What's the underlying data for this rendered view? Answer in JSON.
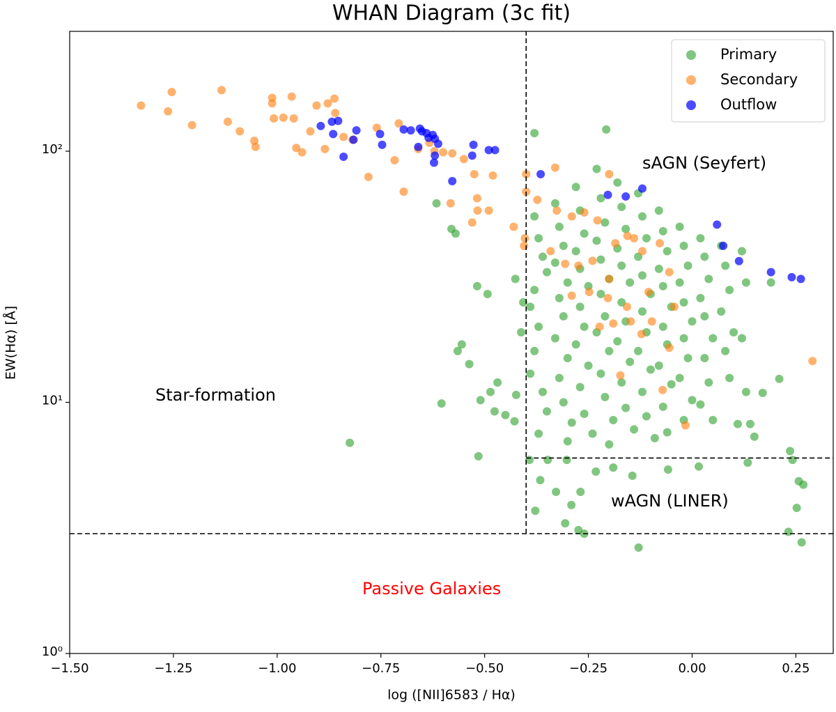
{
  "chart_data": {
    "type": "scatter",
    "title": "WHAN Diagram (3c fit)",
    "x_label": "log ([NII]6583 / Hα)",
    "y_label": "EW(Hα) [Å]",
    "xlim": [
      -1.5,
      0.34
    ],
    "ylim": [
      1,
      300
    ],
    "yscale": "log",
    "xticks": [
      {
        "value": -1.5,
        "label": "−1.50"
      },
      {
        "value": -1.25,
        "label": "−1.25"
      },
      {
        "value": -1,
        "label": "−1.00"
      },
      {
        "value": -0.75,
        "label": "−0.75"
      },
      {
        "value": -0.5,
        "label": "−0.50"
      },
      {
        "value": -0.25,
        "label": "−0.25"
      },
      {
        "value": 0,
        "label": "0.00"
      },
      0.25
    ],
    "yticks": [
      {
        "value": 1,
        "label": "10⁰"
      },
      {
        "value": 10,
        "label": "10¹"
      },
      {
        "value": 100,
        "label": "10²"
      }
    ],
    "legend": "upper right",
    "dividers": [
      {
        "x": [
          -0.4,
          -0.4
        ],
        "y": [
          3,
          300
        ]
      },
      {
        "x": [
          -1.5,
          0.34
        ],
        "y": [
          3,
          3
        ]
      },
      {
        "x": [
          -0.4,
          0.34
        ],
        "y": [
          6,
          6
        ]
      }
    ],
    "annotations": [
      {
        "text": "Star-formation",
        "color": "#000000"
      },
      {
        "text": "sAGN (Seyfert)",
        "color": "#000000"
      },
      {
        "text": "wAGN (LINER)",
        "color": "#000000"
      },
      {
        "text": "Passive Galaxies",
        "color": "#ff0000"
      }
    ],
    "series": [
      {
        "name": "Primary",
        "color": "#2ca02c",
        "x": [
          -0.38,
          -0.207,
          -0.616,
          -0.58,
          -0.57,
          -0.518,
          -0.493,
          -0.426,
          -0.407,
          -0.412,
          -0.555,
          -0.565,
          -0.537,
          -0.51,
          -0.469,
          -0.424,
          -0.45,
          -0.428,
          -0.604,
          -0.825,
          -0.515,
          -0.486,
          -0.476,
          -0.366,
          -0.378,
          -0.328,
          -0.306,
          -0.291,
          -0.269,
          -0.274,
          -0.26,
          -0.232,
          -0.19,
          -0.144,
          -0.129,
          -0.058,
          0.016,
          0.134,
          0.236,
          0.242,
          0.257,
          0.268,
          0.252,
          0.232,
          0.264,
          -0.392,
          -0.348,
          -0.302,
          -0.38,
          -0.37,
          -0.36,
          -0.35,
          -0.38,
          -0.39,
          -0.37,
          -0.38,
          -0.39,
          -0.36,
          -0.35,
          -0.37,
          -0.33,
          -0.32,
          -0.31,
          -0.33,
          -0.3,
          -0.32,
          -0.31,
          -0.33,
          -0.3,
          -0.32,
          -0.31,
          -0.29,
          -0.3,
          -0.28,
          -0.27,
          -0.26,
          -0.28,
          -0.27,
          -0.25,
          -0.27,
          -0.26,
          -0.28,
          -0.25,
          -0.27,
          -0.26,
          -0.24,
          -0.23,
          -0.22,
          -0.21,
          -0.23,
          -0.22,
          -0.2,
          -0.22,
          -0.21,
          -0.23,
          -0.2,
          -0.22,
          -0.21,
          -0.19,
          -0.2,
          -0.18,
          -0.17,
          -0.16,
          -0.18,
          -0.17,
          -0.15,
          -0.17,
          -0.16,
          -0.18,
          -0.15,
          -0.17,
          -0.16,
          -0.14,
          -0.13,
          -0.12,
          -0.11,
          -0.13,
          -0.12,
          -0.1,
          -0.12,
          -0.11,
          -0.13,
          -0.1,
          -0.12,
          -0.11,
          -0.09,
          -0.08,
          -0.07,
          -0.06,
          -0.08,
          -0.07,
          -0.05,
          -0.07,
          -0.06,
          -0.08,
          -0.05,
          -0.07,
          -0.06,
          -0.03,
          -0.02,
          -0.01,
          -0.03,
          -0.02,
          0,
          -0.02,
          -0.01,
          -0.03,
          0,
          -0.02,
          0.02,
          0.03,
          0.04,
          0.02,
          0.03,
          0.05,
          0.03,
          0.04,
          0.02,
          0.05,
          0.07,
          0.08,
          0.09,
          0.07,
          0.1,
          0.08,
          0.09,
          0.12,
          0.13,
          0.12,
          0.13,
          0.11,
          0.15,
          0.17,
          0.19,
          0.14,
          0.21
        ],
        "values": [
          118,
          122,
          62,
          49,
          47,
          29,
          27,
          31,
          25,
          19,
          17,
          16,
          14.2,
          10.2,
          12,
          10.7,
          8.9,
          8.4,
          9.9,
          6.9,
          6.1,
          11,
          9.2,
          4.9,
          3.7,
          4.4,
          3.3,
          3.9,
          4.4,
          3.1,
          3.0,
          5.3,
          5.5,
          5.1,
          2.64,
          5.4,
          5.55,
          5.75,
          6.4,
          5.9,
          4.85,
          4.7,
          3.8,
          3.05,
          2.77,
          5.9,
          5.9,
          5.9,
          55,
          45,
          38,
          33,
          28,
          24,
          20,
          16,
          13,
          11,
          9.2,
          7.5,
          62,
          50,
          42,
          36,
          30,
          26,
          22,
          18,
          15,
          12.5,
          10,
          8.3,
          7,
          72,
          58,
          47,
          40,
          34,
          29,
          24,
          20,
          17,
          14,
          11.5,
          9,
          7.5,
          85,
          65,
          52,
          44,
          37,
          31,
          27,
          22,
          19,
          16,
          13,
          10.5,
          8.5,
          6.8,
          75,
          60,
          49,
          41,
          35,
          30,
          25,
          21,
          17.5,
          14.5,
          12,
          9.5,
          7.8,
          68,
          55,
          45,
          38,
          32,
          27,
          23,
          19,
          16,
          13.5,
          11,
          8.8,
          7.2,
          58,
          48,
          40,
          34,
          29,
          24,
          20,
          17,
          14,
          11.8,
          9.6,
          7.6,
          50,
          42,
          35,
          30,
          25,
          21,
          18,
          15,
          12.5,
          10.2,
          8.5,
          45,
          38,
          31,
          26,
          22,
          18,
          15,
          12,
          9.8,
          8.5,
          42,
          35,
          28,
          23,
          19,
          16,
          12.5,
          40,
          30,
          18,
          11,
          8.2,
          7.3,
          10.9,
          30,
          8.2,
          12.4
        ]
      },
      {
        "name": "Secondary",
        "color": "#ff7f0e",
        "x": [
          -1.328,
          -1.263,
          -1.254,
          -1.205,
          -1.134,
          -1.119,
          -1.09,
          -1.055,
          -1.052,
          -1.012,
          -1.012,
          -1.008,
          -0.985,
          -0.965,
          -0.96,
          -0.954,
          -0.94,
          -0.92,
          -0.905,
          -0.885,
          -0.878,
          -0.862,
          -0.86,
          -0.84,
          -0.818,
          -0.78,
          -0.76,
          -0.717,
          -0.707,
          -0.695,
          -0.66,
          -0.633,
          -0.621,
          -0.6,
          -0.582,
          -0.578,
          -0.55,
          -0.525,
          -0.518,
          -0.517,
          -0.49,
          -0.53,
          -0.48,
          -0.43,
          -0.4,
          -0.4,
          -0.403,
          -0.405,
          -0.33,
          -0.373,
          -0.326,
          -0.29,
          -0.26,
          -0.2,
          -0.228,
          -0.185,
          -0.156,
          -0.14,
          -0.12,
          -0.078,
          -0.055,
          -0.274,
          -0.248,
          -0.203,
          -0.19,
          -0.157,
          -0.122,
          -0.097,
          -0.055,
          -0.043,
          -0.173,
          -0.071,
          -0.016,
          0.29,
          -0.341,
          -0.29,
          -0.223,
          -0.148,
          -0.105,
          -0.24,
          -0.306,
          -0.2
        ],
        "values": [
          152,
          144,
          172,
          127,
          175,
          131,
          120,
          110,
          104,
          163,
          155,
          135,
          136,
          165,
          135,
          103,
          99,
          120,
          152,
          102,
          155,
          162,
          142,
          114,
          111,
          79,
          124,
          92,
          129,
          69,
          102,
          108,
          100,
          99,
          62,
          98,
          93,
          81,
          65,
          58,
          58,
          52,
          80,
          50,
          81,
          69,
          45,
          42,
          86,
          64,
          58,
          55,
          57,
          81,
          53,
          43,
          46,
          45,
          40,
          43,
          33,
          35,
          27.5,
          26,
          20.6,
          24,
          18.7,
          21,
          16.5,
          24,
          12.8,
          11.2,
          8.1,
          14.6,
          40,
          26.6,
          20,
          21,
          27.5,
          36.6,
          35.6,
          31
        ]
      },
      {
        "name": "Outflow",
        "color": "#0000ff",
        "x": [
          -0.895,
          -0.868,
          -0.853,
          -0.865,
          -0.84,
          -0.809,
          -0.816,
          -0.752,
          -0.747,
          -0.695,
          -0.678,
          -0.656,
          -0.651,
          -0.64,
          -0.635,
          -0.625,
          -0.62,
          -0.612,
          -0.66,
          -0.62,
          -0.622,
          -0.578,
          -0.53,
          -0.527,
          -0.49,
          -0.475,
          -0.365,
          -0.203,
          -0.16,
          -0.12,
          0.06,
          0.075,
          0.113,
          0.19,
          0.24,
          0.262
        ],
        "values": [
          126,
          131,
          132,
          117,
          95,
          121,
          111,
          117,
          106,
          122,
          121,
          123,
          120,
          118,
          113,
          116,
          112,
          107,
          104,
          96,
          90,
          76,
          96,
          106,
          101,
          101,
          81,
          67,
          66,
          71,
          51,
          42,
          36.5,
          33,
          31.5,
          31
        ]
      }
    ]
  }
}
